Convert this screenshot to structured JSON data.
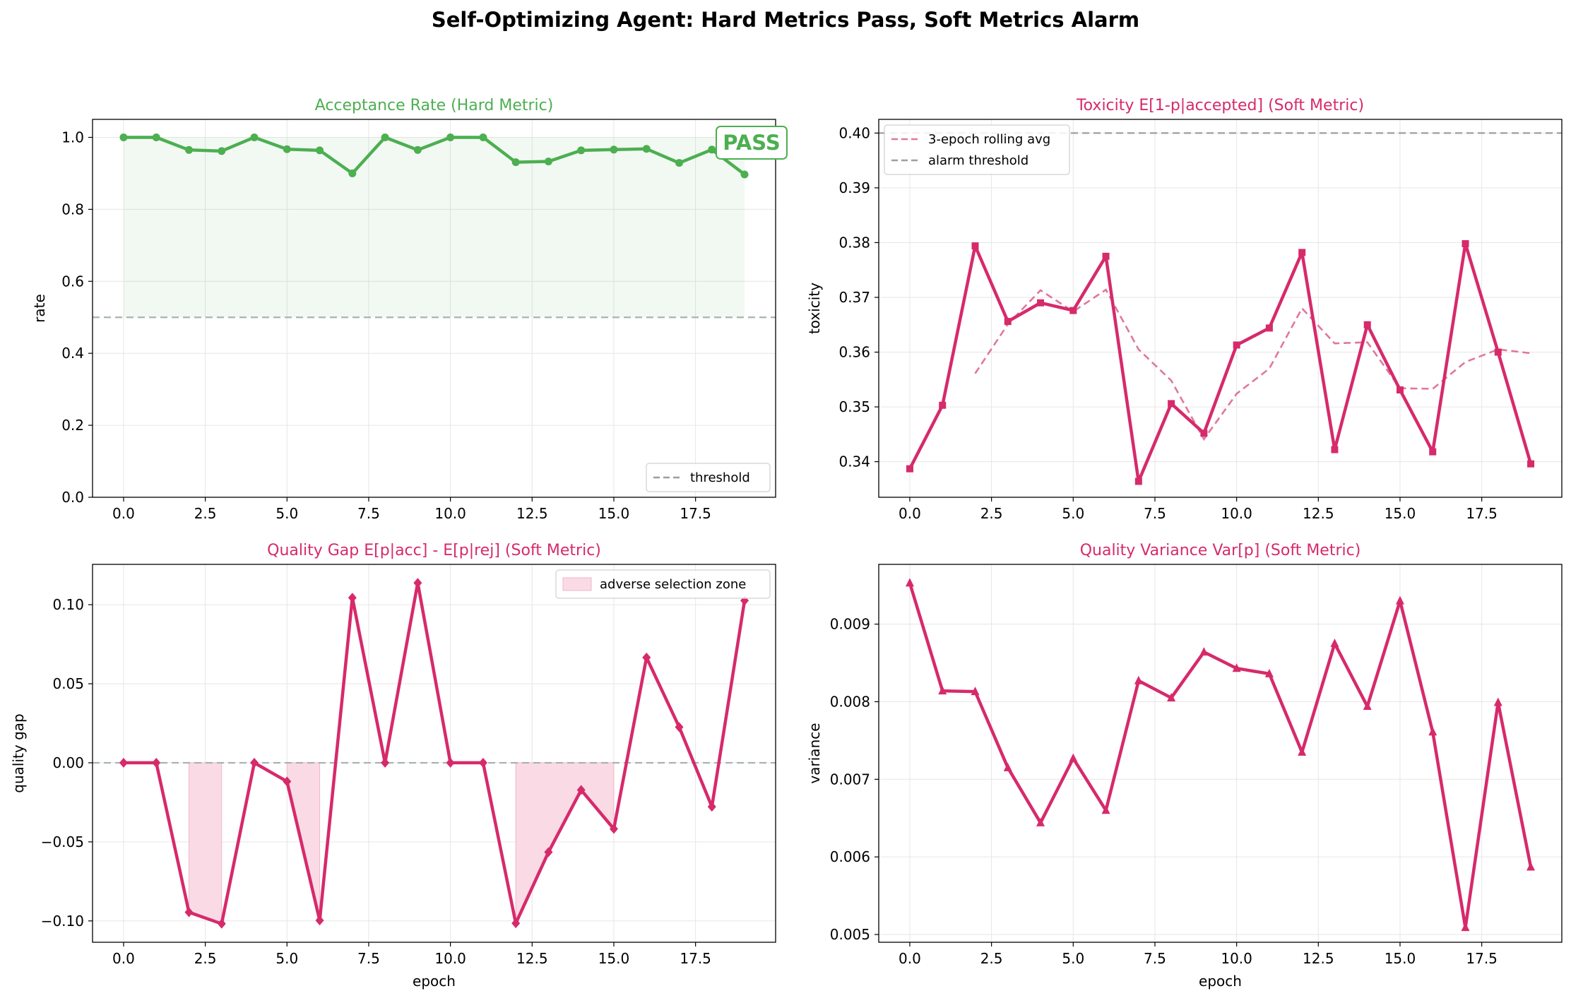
{
  "figure": {
    "title": "Self-Optimizing Agent: Hard Metrics Pass, Soft Metrics Alarm"
  },
  "colors": {
    "green": "#4caf50",
    "pink": "#d62a6b",
    "pink_rolling": "#e0779c",
    "threshold_gray": "#9e9e9e",
    "grid": "#e6e6e6",
    "zone_fill": "#fadbe5"
  },
  "chart_data": [
    {
      "id": "acceptance",
      "type": "line",
      "title": "Acceptance Rate (Hard Metric)",
      "xlabel": "",
      "ylabel": "rate",
      "xlim": [
        -0.95,
        19.95
      ],
      "ylim": [
        0.0,
        1.05
      ],
      "xticks": [
        0.0,
        2.5,
        5.0,
        7.5,
        10.0,
        12.5,
        15.0,
        17.5
      ],
      "xtick_labels": [
        "0.0",
        "2.5",
        "5.0",
        "7.5",
        "10.0",
        "12.5",
        "15.0",
        "17.5"
      ],
      "yticks": [
        0.0,
        0.2,
        0.4,
        0.6,
        0.8,
        1.0
      ],
      "ytick_labels": [
        "0.0",
        "0.2",
        "0.4",
        "0.6",
        "0.8",
        "1.0"
      ],
      "grid": true,
      "x": [
        0,
        1,
        2,
        3,
        4,
        5,
        6,
        7,
        8,
        9,
        10,
        11,
        12,
        13,
        14,
        15,
        16,
        17,
        18,
        19
      ],
      "series": [
        {
          "values": [
            1.0,
            1.0,
            0.965,
            0.962,
            1.0,
            0.967,
            0.964,
            0.9,
            1.0,
            0.965,
            1.0,
            1.0,
            0.931,
            0.933,
            0.964,
            0.966,
            0.968,
            0.929,
            0.966,
            0.897
          ]
        }
      ],
      "threshold": {
        "value": 0.5,
        "label": "threshold"
      },
      "fill_between": [
        0.5,
        1.0
      ],
      "badge": "PASS",
      "legend": {
        "placement": "lower-right",
        "entries": [
          "threshold"
        ]
      }
    },
    {
      "id": "toxicity",
      "type": "line",
      "title": "Toxicity E[1-p|accepted] (Soft Metric)",
      "xlabel": "",
      "ylabel": "toxicity",
      "xlim": [
        -0.95,
        19.95
      ],
      "ylim": [
        0.3335,
        0.4025
      ],
      "xticks": [
        0.0,
        2.5,
        5.0,
        7.5,
        10.0,
        12.5,
        15.0,
        17.5
      ],
      "xtick_labels": [
        "0.0",
        "2.5",
        "5.0",
        "7.5",
        "10.0",
        "12.5",
        "15.0",
        "17.5"
      ],
      "yticks": [
        0.34,
        0.35,
        0.36,
        0.37,
        0.38,
        0.39,
        0.4
      ],
      "ytick_labels": [
        "0.34",
        "0.35",
        "0.36",
        "0.37",
        "0.38",
        "0.39",
        "0.40"
      ],
      "grid": true,
      "x": [
        0,
        1,
        2,
        3,
        4,
        5,
        6,
        7,
        8,
        9,
        10,
        11,
        12,
        13,
        14,
        15,
        16,
        17,
        18,
        19
      ],
      "series": [
        {
          "values": [
            0.3387,
            0.3503,
            0.3794,
            0.3656,
            0.369,
            0.3676,
            0.3775,
            0.3364,
            0.3506,
            0.3452,
            0.3613,
            0.3644,
            0.3782,
            0.3422,
            0.365,
            0.3531,
            0.3418,
            0.3798,
            0.36,
            0.3396
          ]
        },
        {
          "name": "3-epoch rolling avg",
          "x": [
            2,
            3,
            4,
            5,
            6,
            7,
            8,
            9,
            10,
            11,
            12,
            13,
            14,
            15,
            16,
            17,
            18,
            19
          ],
          "values": [
            0.3561,
            0.3651,
            0.3713,
            0.3674,
            0.3714,
            0.3605,
            0.3548,
            0.3441,
            0.3524,
            0.357,
            0.368,
            0.3616,
            0.3618,
            0.3534,
            0.3533,
            0.3582,
            0.3605,
            0.3598
          ]
        }
      ],
      "threshold": {
        "value": 0.4,
        "label": "alarm threshold"
      },
      "legend": {
        "placement": "top-left",
        "entries": [
          "3-epoch rolling avg",
          "alarm threshold"
        ]
      }
    },
    {
      "id": "quality_gap",
      "type": "line",
      "title": "Quality Gap E[p|acc] - E[p|rej] (Soft Metric)",
      "xlabel": "epoch",
      "ylabel": "quality gap",
      "xlim": [
        -0.95,
        19.95
      ],
      "ylim": [
        -0.1135,
        0.1255
      ],
      "xticks": [
        0.0,
        2.5,
        5.0,
        7.5,
        10.0,
        12.5,
        15.0,
        17.5
      ],
      "xtick_labels": [
        "0.0",
        "2.5",
        "5.0",
        "7.5",
        "10.0",
        "12.5",
        "15.0",
        "17.5"
      ],
      "yticks": [
        -0.1,
        -0.05,
        0.0,
        0.05,
        0.1
      ],
      "ytick_labels": [
        "−0.10",
        "−0.05",
        "0.00",
        "0.05",
        "0.10"
      ],
      "grid": true,
      "x": [
        0,
        1,
        2,
        3,
        4,
        5,
        6,
        7,
        8,
        9,
        10,
        11,
        12,
        13,
        14,
        15,
        16,
        17,
        18,
        19
      ],
      "series": [
        {
          "values": [
            0.0,
            0.0,
            -0.0945,
            -0.1018,
            0.0,
            -0.0118,
            -0.0997,
            0.1044,
            0.0,
            0.1138,
            0.0,
            0.0,
            -0.1015,
            -0.0565,
            -0.0172,
            -0.0418,
            0.0666,
            0.0226,
            -0.0278,
            0.1026
          ]
        }
      ],
      "zero_line": 0.0,
      "shaded_zone": {
        "label": "adverse selection zone",
        "ranges": [
          [
            2,
            3
          ],
          [
            5,
            6
          ],
          [
            12,
            15
          ]
        ]
      },
      "legend": {
        "placement": "top-right",
        "entries": [
          "adverse selection zone"
        ]
      }
    },
    {
      "id": "variance",
      "type": "line",
      "title": "Quality Variance Var[p] (Soft Metric)",
      "xlabel": "epoch",
      "ylabel": "variance",
      "xlim": [
        -0.95,
        19.95
      ],
      "ylim": [
        0.0049,
        0.00977
      ],
      "xticks": [
        0.0,
        2.5,
        5.0,
        7.5,
        10.0,
        12.5,
        15.0,
        17.5
      ],
      "xtick_labels": [
        "0.0",
        "2.5",
        "5.0",
        "7.5",
        "10.0",
        "12.5",
        "15.0",
        "17.5"
      ],
      "yticks": [
        0.005,
        0.006,
        0.007,
        0.008,
        0.009
      ],
      "ytick_labels": [
        "0.005",
        "0.006",
        "0.007",
        "0.008",
        "0.009"
      ],
      "grid": true,
      "x": [
        0,
        1,
        2,
        3,
        4,
        5,
        6,
        7,
        8,
        9,
        10,
        11,
        12,
        13,
        14,
        15,
        16,
        17,
        18,
        19
      ],
      "series": [
        {
          "values": [
            0.00953,
            0.00814,
            0.00813,
            0.00715,
            0.00644,
            0.00727,
            0.0066,
            0.00827,
            0.00805,
            0.00864,
            0.00843,
            0.00836,
            0.00735,
            0.00875,
            0.00794,
            0.0093,
            0.00761,
            0.00509,
            0.00799,
            0.00587
          ]
        }
      ],
      "legend": null
    }
  ]
}
